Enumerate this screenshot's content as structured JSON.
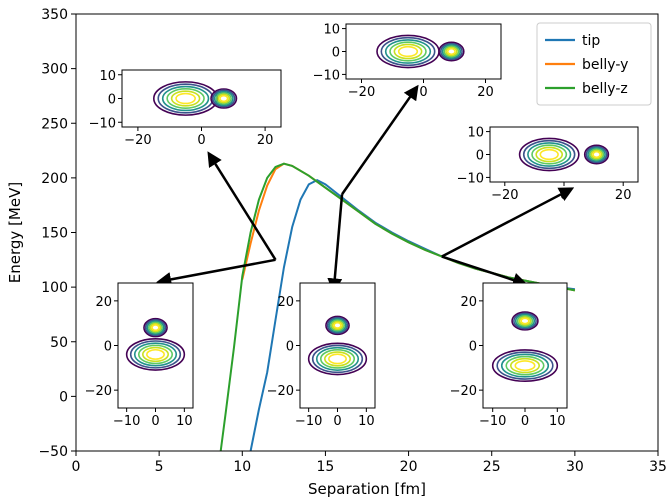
{
  "chart_data": {
    "type": "line",
    "xlabel": "Separation [fm]",
    "ylabel": "Energy [MeV]",
    "xlim": [
      0,
      35
    ],
    "ylim": [
      -50,
      350
    ],
    "xticks": [
      0,
      5,
      10,
      15,
      20,
      25,
      30,
      35
    ],
    "yticks": [
      -50,
      0,
      50,
      100,
      150,
      200,
      250,
      300,
      350
    ],
    "grid": false,
    "legend_position": "top-right",
    "series": [
      {
        "name": "tip",
        "color": "#1f77b4",
        "x": [
          10.5,
          11,
          11.5,
          12,
          12.5,
          13,
          13.5,
          14,
          14.5,
          15,
          16,
          17,
          18,
          19,
          20,
          21,
          22,
          23,
          24,
          25,
          26,
          27,
          28,
          29,
          30
        ],
        "y": [
          -50,
          -12,
          22,
          70,
          118,
          155,
          180,
          194,
          198,
          194,
          182,
          170,
          159,
          150,
          142,
          135,
          128,
          123,
          117,
          113,
          109,
          106,
          103,
          100,
          98
        ]
      },
      {
        "name": "belly-y",
        "color": "#ff7f0e",
        "x": [
          10,
          10.5,
          11,
          11.5,
          12,
          12.5,
          13,
          14,
          15,
          16,
          17,
          18,
          19,
          20,
          21,
          22,
          23,
          24,
          25,
          26,
          27,
          28,
          29,
          30
        ],
        "y": [
          107,
          140,
          170,
          193,
          208,
          213,
          211,
          202,
          191,
          180,
          169,
          158,
          149,
          141,
          134,
          128,
          122,
          117,
          113,
          109,
          106,
          103,
          100,
          97
        ]
      },
      {
        "name": "belly-z",
        "color": "#2ca02c",
        "x": [
          8.7,
          9,
          9.5,
          10,
          10.5,
          11,
          11.5,
          12,
          12.5,
          13,
          14,
          15,
          16,
          17,
          18,
          19,
          20,
          21,
          22,
          23,
          24,
          25,
          26,
          27,
          28,
          29,
          30
        ],
        "y": [
          -50,
          -15,
          45,
          110,
          150,
          180,
          200,
          210,
          213,
          211,
          202,
          191,
          180,
          169,
          158,
          149,
          141,
          134,
          128,
          122,
          117,
          113,
          109,
          106,
          103,
          100,
          97
        ]
      }
    ],
    "arrows": [
      {
        "from": [
          12,
          125
        ],
        "to": [
          8,
          222
        ]
      },
      {
        "from": [
          12,
          125
        ],
        "to": [
          5,
          105
        ]
      },
      {
        "from": [
          16,
          185
        ],
        "to": [
          20.5,
          283
        ]
      },
      {
        "from": [
          16,
          185
        ],
        "to": [
          15.5,
          97
        ]
      },
      {
        "from": [
          22,
          128
        ],
        "to": [
          29.8,
          190
        ]
      },
      {
        "from": [
          22,
          128
        ],
        "to": [
          27,
          103
        ]
      }
    ],
    "insets": [
      {
        "id": "wide-top-left",
        "xticks": [
          "−20",
          "0",
          "20"
        ],
        "yticks": [
          "10",
          "0",
          "−10"
        ],
        "xlim": [
          -25,
          25
        ],
        "ylim": [
          -12,
          12
        ],
        "fragments": [
          {
            "cx": -5,
            "cy": 0,
            "rx": 10,
            "ry": 7
          },
          {
            "cx": 7,
            "cy": 0,
            "rx": 4,
            "ry": 4
          }
        ]
      },
      {
        "id": "wide-top-center",
        "xticks": [
          "−20",
          "0",
          "20"
        ],
        "yticks": [
          "10",
          "0",
          "−10"
        ],
        "xlim": [
          -25,
          25
        ],
        "ylim": [
          -12,
          12
        ],
        "fragments": [
          {
            "cx": -5,
            "cy": 0,
            "rx": 10,
            "ry": 7
          },
          {
            "cx": 9,
            "cy": 0,
            "rx": 4,
            "ry": 4
          }
        ]
      },
      {
        "id": "wide-right",
        "xticks": [
          "−20",
          "0",
          "20"
        ],
        "yticks": [
          "10",
          "0",
          "−10"
        ],
        "xlim": [
          -25,
          25
        ],
        "ylim": [
          -12,
          12
        ],
        "fragments": [
          {
            "cx": -5,
            "cy": 0,
            "rx": 10,
            "ry": 7
          },
          {
            "cx": 11,
            "cy": 0,
            "rx": 4,
            "ry": 4
          }
        ]
      },
      {
        "id": "tall-left",
        "xticks": [
          "−10",
          "0",
          "10"
        ],
        "yticks": [
          "20",
          "0",
          "−20"
        ],
        "xlim": [
          -13,
          13
        ],
        "ylim": [
          -28,
          28
        ],
        "fragments": [
          {
            "cx": 0,
            "cy": -4,
            "rx": 10,
            "ry": 7
          },
          {
            "cx": 0,
            "cy": 8,
            "rx": 4,
            "ry": 4
          }
        ]
      },
      {
        "id": "tall-center",
        "xticks": [
          "−10",
          "0",
          "10"
        ],
        "yticks": [
          "20",
          "0",
          "−20"
        ],
        "xlim": [
          -13,
          13
        ],
        "ylim": [
          -28,
          28
        ],
        "fragments": [
          {
            "cx": 0,
            "cy": -6,
            "rx": 10,
            "ry": 7
          },
          {
            "cx": 0,
            "cy": 9,
            "rx": 4,
            "ry": 4
          }
        ]
      },
      {
        "id": "tall-right",
        "xticks": [
          "−10",
          "0",
          "10"
        ],
        "yticks": [
          "20",
          "0",
          "−20"
        ],
        "xlim": [
          -13,
          13
        ],
        "ylim": [
          -28,
          28
        ],
        "fragments": [
          {
            "cx": 0,
            "cy": -9,
            "rx": 10,
            "ry": 7
          },
          {
            "cx": 0,
            "cy": 11,
            "rx": 4,
            "ry": 4
          }
        ]
      }
    ],
    "contour_colors": [
      "#440154",
      "#3b528b",
      "#21918c",
      "#5ec962",
      "#c8e020",
      "#fde725"
    ]
  }
}
